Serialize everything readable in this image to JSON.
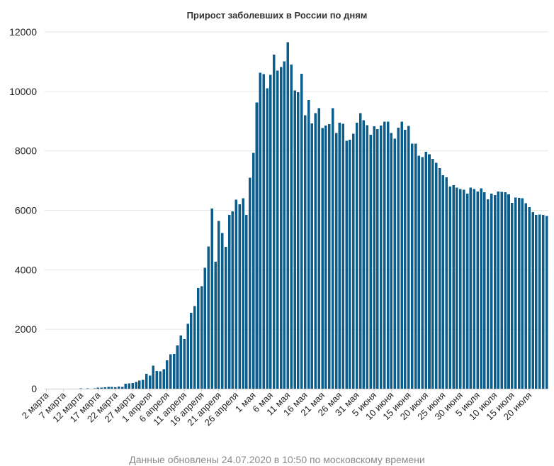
{
  "chart_data": {
    "type": "bar",
    "title": "Прирост заболевших в России по дням",
    "footer": "Данные обновлены 24.07.2020 в 10:50 по московскому времени",
    "bar_color": "#0b5e8c",
    "ylim": [
      0,
      12000
    ],
    "yticks": [
      "0",
      "2000",
      "4000",
      "6000",
      "8000",
      "10000",
      "12000"
    ],
    "x_start": "2020-03-02",
    "x_tick_labels": [
      "2 марта",
      "7 марта",
      "12 марта",
      "17 марта",
      "22 марта",
      "27 марта",
      "1 апреля",
      "6 апреля",
      "11 апреля",
      "16 апреля",
      "21 апреля",
      "26 апреля",
      "1 мая",
      "6 мая",
      "11 мая",
      "16 мая",
      "21 мая",
      "26 мая",
      "31 мая",
      "5 июня",
      "10 июня",
      "15 июня",
      "20 июня",
      "25 июня",
      "30 июня",
      "5 июля",
      "10 июля",
      "15 июля",
      "20 июля"
    ],
    "values": [
      0,
      0,
      0,
      0,
      0,
      0,
      3,
      0,
      2,
      2,
      8,
      6,
      14,
      6,
      14,
      30,
      30,
      48,
      54,
      57,
      53,
      71,
      57,
      163,
      182,
      196,
      228,
      270,
      302,
      500,
      440,
      771,
      601,
      582,
      658,
      954,
      1154,
      1175,
      1459,
      1786,
      1667,
      2186,
      2558,
      2774,
      3388,
      3448,
      4070,
      4785,
      6060,
      4268,
      5642,
      5236,
      4774,
      5849,
      5966,
      6361,
      6198,
      6411,
      5841,
      7099,
      7933,
      9623,
      10633,
      10581,
      10102,
      10559,
      11231,
      10699,
      10817,
      11012,
      11656,
      10899,
      10028,
      9974,
      10598,
      9200,
      9709,
      8926,
      9263,
      9434,
      8764,
      8849,
      8894,
      9434,
      8599,
      8946,
      8915,
      8338,
      8371,
      8572,
      8952,
      9268,
      9035,
      8863,
      8536,
      8831,
      8726,
      8855,
      8985,
      8984,
      8595,
      8404,
      8779,
      8987,
      8706,
      8835,
      8248,
      8246,
      7843,
      7790,
      7972,
      7889,
      7728,
      7600,
      7425,
      7176,
      7113,
      6800,
      6852,
      6760,
      6719,
      6693,
      6556,
      6760,
      6718,
      6632,
      6736,
      6611,
      6368,
      6562,
      6509,
      6635,
      6615,
      6611,
      6537,
      6248,
      6428,
      6422,
      6406,
      6234,
      6109,
      5940,
      5842,
      5862,
      5848,
      5811
    ]
  }
}
